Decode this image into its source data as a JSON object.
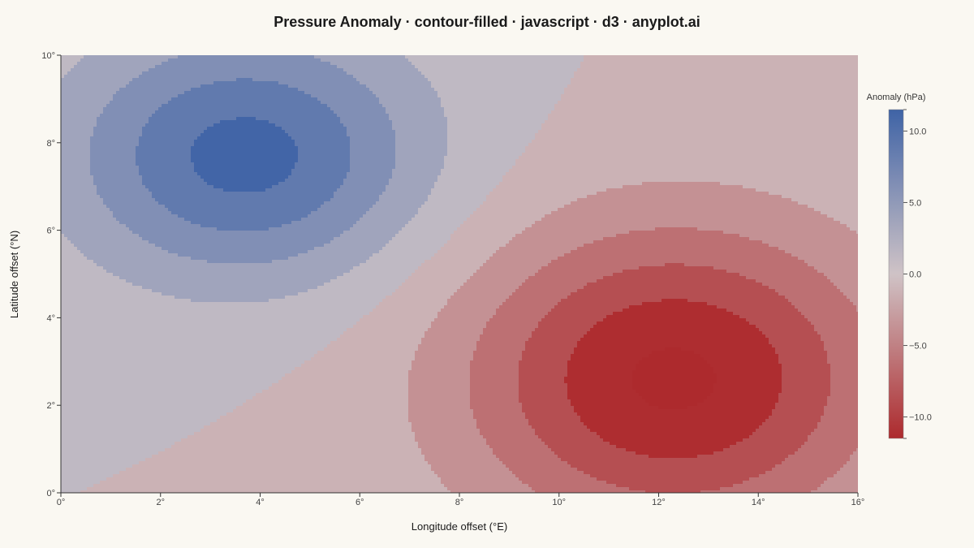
{
  "chart_data": {
    "type": "heatmap",
    "subtype": "contour-filled",
    "title": "Pressure Anomaly · contour-filled · javascript · d3 · anyplot.ai",
    "xlabel": "Longitude offset (°E)",
    "ylabel": "Latitude offset (°N)",
    "xlim": [
      0,
      16
    ],
    "ylim": [
      0,
      10
    ],
    "x_ticks": [
      0,
      2,
      4,
      6,
      8,
      10,
      12,
      14,
      16
    ],
    "y_ticks": [
      0,
      2,
      4,
      6,
      8,
      10
    ],
    "x_tick_labels": [
      "0°",
      "2°",
      "4°",
      "6°",
      "8°",
      "10°",
      "12°",
      "14°",
      "16°"
    ],
    "y_tick_labels": [
      "0°",
      "2°",
      "4°",
      "6°",
      "8°",
      "10°"
    ],
    "grid": false,
    "field": {
      "components": [
        {
          "kind": "high",
          "center": [
            3.7,
            7.7
          ],
          "amplitude": 11.0,
          "sigma": [
            2.5,
            2.0
          ]
        },
        {
          "kind": "low",
          "center": [
            12.3,
            2.6
          ],
          "amplitude": -13.0,
          "sigma": [
            3.0,
            2.5
          ]
        }
      ]
    },
    "levels": [
      -15,
      -12.5,
      -10,
      -7.5,
      -5,
      -2.5,
      0,
      2.5,
      5,
      7.5,
      10,
      12.5
    ],
    "colorbar": {
      "title": "Anomaly (hPa)",
      "range": [
        -11.5,
        11.5
      ],
      "ticks": [
        10,
        5,
        0,
        -5,
        -10
      ],
      "tick_labels": [
        "10.0",
        "5.0",
        "0.0",
        "−5.0",
        "−10.0"
      ],
      "colors": {
        "high": "#3f63a6",
        "mid": "#cfc3c6",
        "low": "#ad2a2d"
      },
      "placement": "right"
    }
  }
}
